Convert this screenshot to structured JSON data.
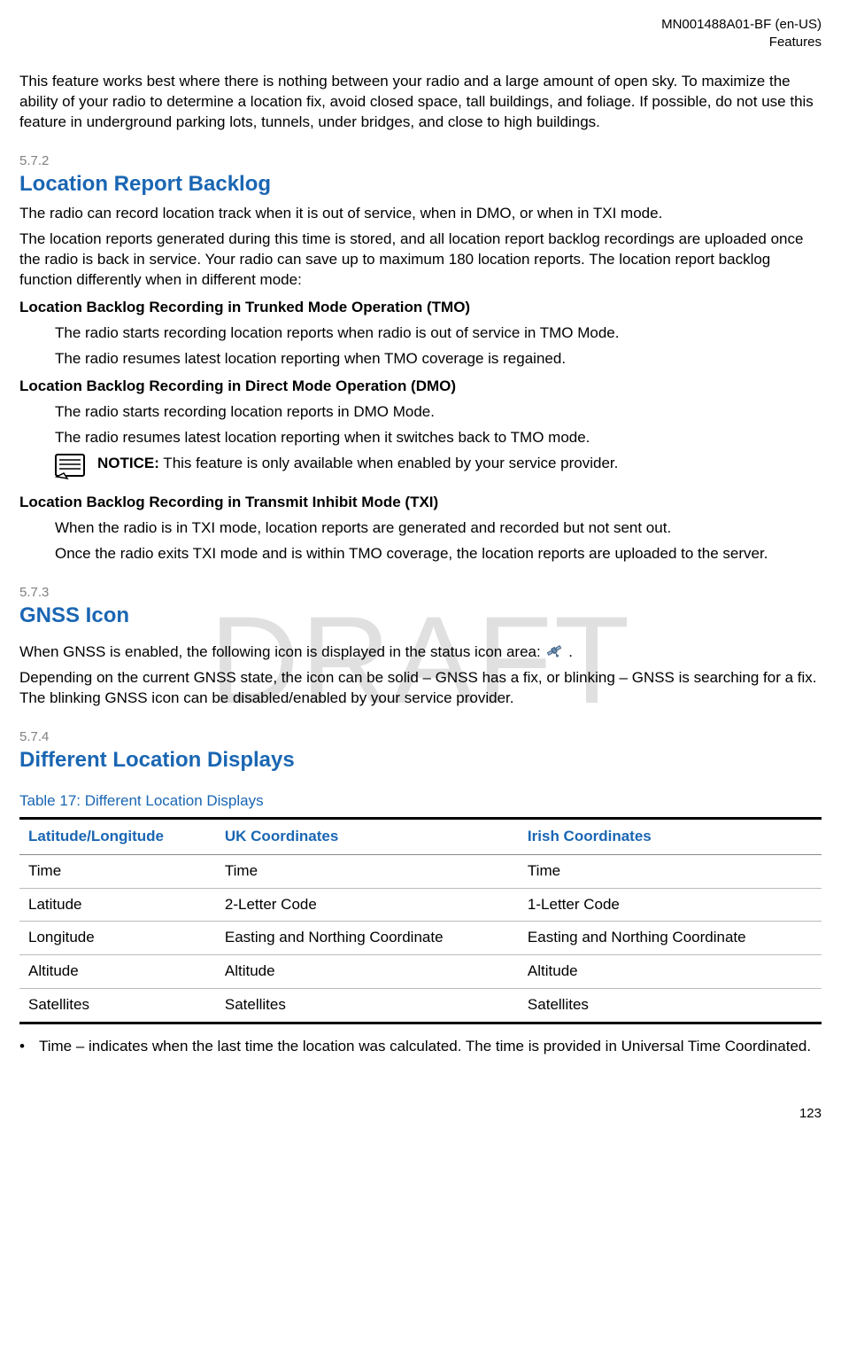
{
  "header": {
    "doc_id": "MN001488A01-BF (en-US)",
    "section": "Features"
  },
  "intro": "This feature works best where there is nothing between your radio and a large amount of open sky. To maximize the ability of your radio to determine a location fix, avoid closed space, tall buildings, and foliage. If possible, do not use this feature in underground parking lots, tunnels, under bridges, and close to high buildings.",
  "watermark": "DRAFT",
  "sec572": {
    "num": "5.7.2",
    "title": "Location Report Backlog",
    "p1": "The radio can record location track when it is out of service, when in DMO, or when in TXI mode.",
    "p2": "The location reports generated during this time is stored, and all location report backlog recordings are uploaded once the radio is back in service. Your radio can save up to maximum 180 location reports. The location report backlog function differently when in different mode:",
    "tmo_h": "Location Backlog Recording in Trunked Mode Operation (TMO)",
    "tmo_p1": "The radio starts recording location reports when radio is out of service in TMO Mode.",
    "tmo_p2": "The radio resumes latest location reporting when TMO coverage is regained.",
    "dmo_h": "Location Backlog Recording in Direct Mode Operation (DMO)",
    "dmo_p1": "The radio starts recording location reports in DMO Mode.",
    "dmo_p2": "The radio resumes latest location reporting when it switches back to TMO mode.",
    "notice_label": "NOTICE:",
    "notice_text": " This feature is only available when enabled by your service provider.",
    "txi_h": "Location Backlog Recording in Transmit Inhibit Mode (TXI)",
    "txi_p1": "When the radio is in TXI mode, location reports are generated and recorded but not sent out.",
    "txi_p2": "Once the radio exits TXI mode and is within TMO coverage, the location reports are uploaded to the server."
  },
  "sec573": {
    "num": "5.7.3",
    "title": "GNSS Icon",
    "p1a": "When GNSS is enabled, the following icon is displayed in the status icon area: ",
    "p1b": " .",
    "p2": "Depending on the current GNSS state, the icon can be solid – GNSS has a fix, or blinking – GNSS is searching for a fix. The blinking GNSS icon can be disabled/enabled by your service provider."
  },
  "sec574": {
    "num": "5.7.4",
    "title": "Different Location Displays",
    "table_title": "Table 17: Different Location Displays",
    "columns": [
      "Latitude/Longitude",
      "UK Coordinates",
      "Irish Coordinates"
    ],
    "rows": [
      [
        "Time",
        "Time",
        "Time"
      ],
      [
        "Latitude",
        "2-Letter Code",
        "1-Letter Code"
      ],
      [
        "Longitude",
        "Easting and Northing Coordinate",
        "Easting and Northing Coordinate"
      ],
      [
        "Altitude",
        "Altitude",
        "Altitude"
      ],
      [
        "Satellites",
        "Satellites",
        "Satellites"
      ]
    ],
    "bullet": "Time – indicates when the last time the location was calculated. The time is provided in Universal Time Coordinated."
  },
  "page_num": "123"
}
